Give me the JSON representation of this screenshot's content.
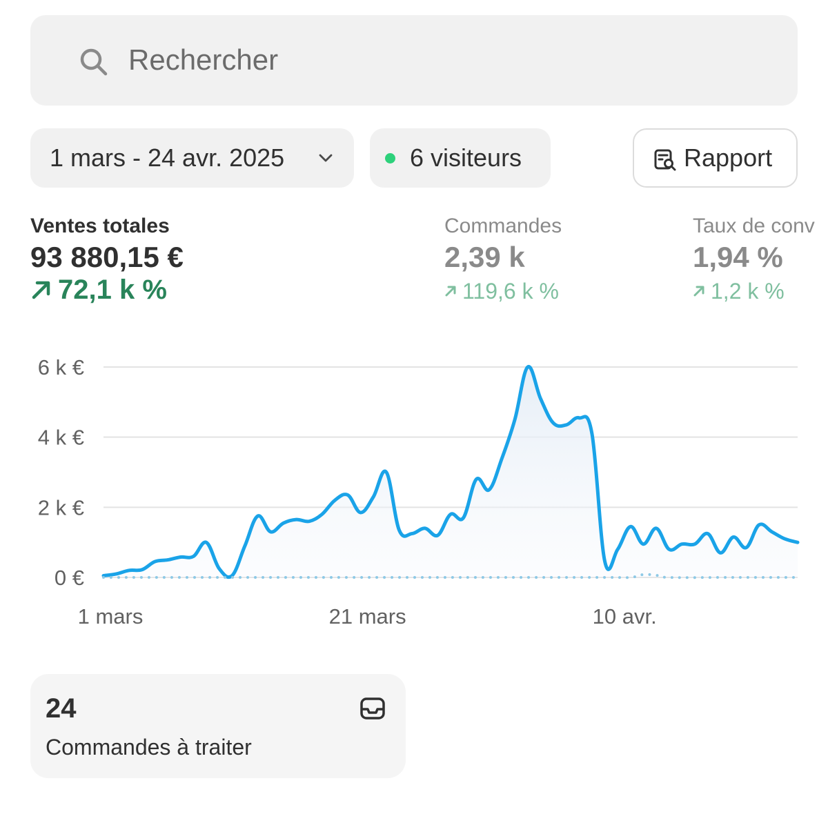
{
  "search": {
    "placeholder": "Rechercher",
    "icon": "search-icon"
  },
  "filters": {
    "date_range": "1 mars - 24 avr. 2025",
    "visitors": "6 visiteurs",
    "visitors_dot_color": "#2dd17b",
    "report_label": "Rapport"
  },
  "metrics": [
    {
      "label": "Ventes totales",
      "value": "93 880,15 €",
      "change": "72,1 k %",
      "trend": "up"
    },
    {
      "label": "Commandes",
      "value": "2,39 k",
      "change": "119,6 k %",
      "trend": "up"
    },
    {
      "label": "Taux de conv",
      "value": "1,94 %",
      "change": "1,2 k %",
      "trend": "up"
    }
  ],
  "chart_data": {
    "type": "line",
    "ylim": [
      0,
      6000
    ],
    "y_ticks": [
      {
        "value": 6000,
        "label": "6 k €"
      },
      {
        "value": 4000,
        "label": "4 k €"
      },
      {
        "value": 2000,
        "label": "2 k €"
      },
      {
        "value": 0,
        "label": "0 €"
      }
    ],
    "x_ticks": [
      {
        "day": 1,
        "label": "1 mars"
      },
      {
        "day": 21,
        "label": "21 mars"
      },
      {
        "day": 41,
        "label": "10 avr."
      }
    ],
    "x_range": [
      1,
      55
    ],
    "grid": true,
    "series": [
      {
        "style": "solid",
        "color": "#1aa3e8",
        "x": [
          1,
          2,
          3,
          4,
          5,
          6,
          7,
          8,
          9,
          10,
          11,
          12,
          13,
          14,
          15,
          16,
          17,
          18,
          19,
          20,
          21,
          22,
          23,
          24,
          25,
          26,
          27,
          28,
          29,
          30,
          31,
          32,
          33,
          34,
          35,
          36,
          37,
          38,
          39,
          40,
          41,
          42,
          43,
          44,
          45,
          46,
          47,
          48,
          49,
          50,
          51,
          52,
          53,
          54,
          55
        ],
        "values": [
          50,
          100,
          200,
          220,
          450,
          500,
          580,
          600,
          1000,
          250,
          50,
          900,
          1750,
          1300,
          1550,
          1650,
          1600,
          1800,
          2200,
          2350,
          1850,
          2300,
          3000,
          1350,
          1250,
          1400,
          1200,
          1800,
          1700,
          2800,
          2500,
          3400,
          4500,
          6000,
          5100,
          4400,
          4350,
          4550,
          4100,
          450,
          800,
          1450,
          950,
          1400,
          800,
          950,
          950,
          1250,
          700,
          1150,
          850,
          1500,
          1300,
          1100,
          1000
        ]
      },
      {
        "style": "dotted",
        "color": "#8ec9e6",
        "x": [
          1,
          10,
          20,
          30,
          40,
          42,
          43,
          44,
          45,
          50,
          55
        ],
        "values": [
          0,
          0,
          0,
          0,
          0,
          0,
          80,
          60,
          0,
          0,
          0
        ]
      }
    ]
  },
  "card": {
    "count": "24",
    "label": "Commandes à traiter",
    "icon": "inbox-icon"
  }
}
